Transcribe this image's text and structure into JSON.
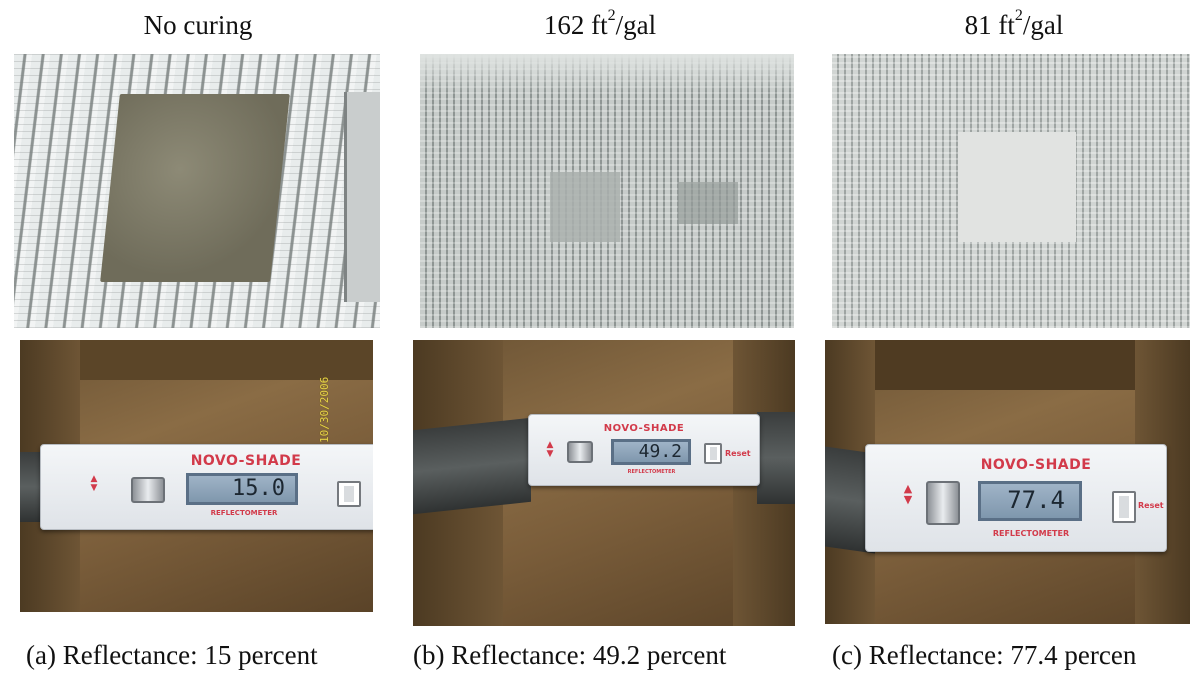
{
  "titles": {
    "a": "No curing",
    "b_value": "162 ft",
    "b_sup": "2",
    "b_unit": "/gal",
    "c_value": "81 ft",
    "c_sup": "2",
    "c_unit": "/gal"
  },
  "meters": {
    "brand": "NOVO-SHADE",
    "subtitle": "REFLECTOMETER",
    "reset_label": "Reset",
    "a_reading": "15.0",
    "b_reading": "49.2",
    "c_reading": "77.4"
  },
  "date_stamp": "10/30/2006",
  "captions": {
    "a": "(a) Reflectance: 15 percent",
    "b": "(b) Reflectance: 49.2 percent",
    "c": "(c) Reflectance: 77.4 percen"
  },
  "colors": {
    "brand_red": "#d23a4a",
    "lcd_blue": "#8da4ba"
  }
}
